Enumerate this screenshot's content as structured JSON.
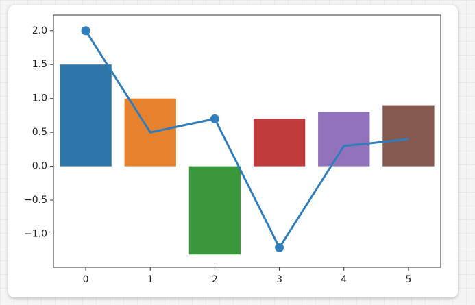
{
  "chart_data": {
    "type": "bar",
    "x": [
      0,
      1,
      2,
      3,
      4,
      5
    ],
    "series": [
      {
        "type": "bar",
        "values": [
          1.5,
          1.0,
          -1.3,
          0.7,
          0.8,
          0.9
        ],
        "colors": [
          "#2e75a8",
          "#e6812d",
          "#3b973b",
          "#c03b3c",
          "#9272bb",
          "#865a4f"
        ]
      },
      {
        "type": "line",
        "values": [
          2.0,
          0.5,
          0.7,
          -1.2,
          0.3,
          0.4
        ],
        "color": "#2e7dbd",
        "markers": [
          true,
          false,
          true,
          true,
          false,
          false
        ]
      }
    ],
    "xlim": [
      -0.5,
      5.5
    ],
    "ylim": [
      -1.49,
      2.23
    ],
    "xticks": [
      0,
      1,
      2,
      3,
      4,
      5
    ],
    "yticks": [
      {
        "value": -1.0,
        "label": "−1.0"
      },
      {
        "value": -0.5,
        "label": "−0.5"
      },
      {
        "value": 0,
        "label": "0.0"
      },
      0.5,
      {
        "value": 1.0,
        "label": "1.0"
      },
      1.5,
      {
        "value": 2.0,
        "label": "2.0"
      }
    ]
  }
}
